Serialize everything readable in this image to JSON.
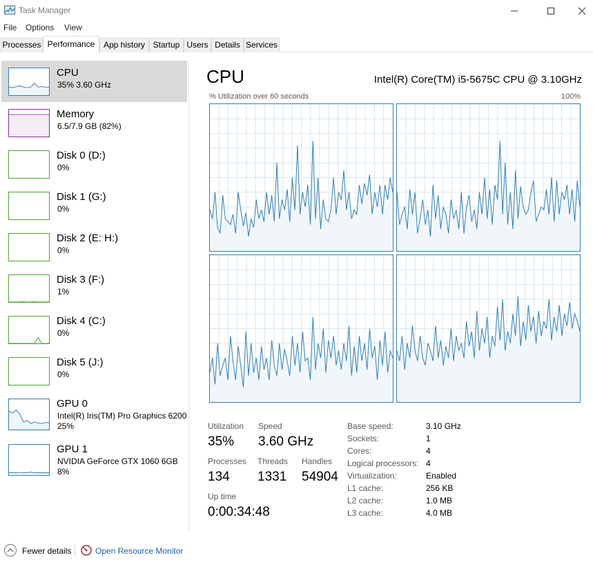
{
  "window": {
    "title": "Task Manager",
    "minimize_icon": "minimize-icon",
    "maximize_icon": "maximize-icon",
    "close_icon": "close-icon"
  },
  "menu": [
    "File",
    "Options",
    "View"
  ],
  "tabs": [
    "Processes",
    "Performance",
    "App history",
    "Startup",
    "Users",
    "Details",
    "Services"
  ],
  "active_tab": "Performance",
  "resources": [
    {
      "name": "CPU",
      "line1": "35%  3.60 GHz",
      "line2": "",
      "color": "#2f7db4",
      "selected": true
    },
    {
      "name": "Memory",
      "line1": "6.5/7.9 GB (82%)",
      "line2": "",
      "color": "#8b2ba5",
      "selected": false
    },
    {
      "name": "Disk 0 (D:)",
      "line1": "0%",
      "line2": "",
      "color": "#4da52d",
      "selected": false
    },
    {
      "name": "Disk 1 (G:)",
      "line1": "0%",
      "line2": "",
      "color": "#4da52d",
      "selected": false
    },
    {
      "name": "Disk 2 (E: H:)",
      "line1": "0%",
      "line2": "",
      "color": "#4da52d",
      "selected": false
    },
    {
      "name": "Disk 3 (F:)",
      "line1": "1%",
      "line2": "",
      "color": "#4da52d",
      "selected": false
    },
    {
      "name": "Disk 4 (C:)",
      "line1": "0%",
      "line2": "",
      "color": "#4da52d",
      "selected": false
    },
    {
      "name": "Disk 5 (J:)",
      "line1": "0%",
      "line2": "",
      "color": "#4da52d",
      "selected": false
    },
    {
      "name": "GPU 0",
      "line1": "Intel(R) Iris(TM) Pro Graphics 6200",
      "line2": "25%",
      "color": "#2f7db4",
      "selected": false
    },
    {
      "name": "GPU 1",
      "line1": "NVIDIA GeForce GTX 1060 6GB",
      "line2": "8%",
      "color": "#2f7db4",
      "selected": false
    }
  ],
  "cpu": {
    "title": "CPU",
    "model": "Intel(R) Core(TM) i5-5675C CPU @ 3.10GHz",
    "graph_label": "% Utilization over 60 seconds",
    "graph_max": "100%",
    "stats": {
      "utilization_label": "Utilization",
      "utilization": "35%",
      "speed_label": "Speed",
      "speed": "3.60 GHz",
      "processes_label": "Processes",
      "processes": "134",
      "threads_label": "Threads",
      "threads": "1331",
      "handles_label": "Handles",
      "handles": "54904",
      "uptime_label": "Up time",
      "uptime": "0:00:34:48"
    },
    "details": [
      {
        "key": "Base speed:",
        "value": "3.10 GHz"
      },
      {
        "key": "Sockets:",
        "value": "1"
      },
      {
        "key": "Cores:",
        "value": "4"
      },
      {
        "key": "Logical processors:",
        "value": "4"
      },
      {
        "key": "Virtualization:",
        "value": "Enabled"
      },
      {
        "key": "L1 cache:",
        "value": "256 KB"
      },
      {
        "key": "L2 cache:",
        "value": "1.0 MB"
      },
      {
        "key": "L3 cache:",
        "value": "4.0 MB"
      }
    ],
    "core_series": [
      [
        28,
        22,
        40,
        16,
        12,
        38,
        22,
        20,
        18,
        25,
        12,
        40,
        28,
        17,
        26,
        10,
        22,
        16,
        35,
        22,
        28,
        20,
        40,
        25,
        38,
        20,
        60,
        22,
        35,
        28,
        42,
        20,
        50,
        28,
        72,
        25,
        40,
        30,
        45,
        18,
        75,
        22,
        50,
        15,
        35,
        22,
        20,
        28,
        50,
        25,
        40,
        35,
        55,
        28,
        40,
        22,
        28,
        25,
        45,
        32,
        46,
        38,
        52,
        25,
        40,
        30,
        45,
        25,
        45,
        35,
        50,
        40
      ],
      [
        40,
        18,
        25,
        30,
        15,
        42,
        25,
        40,
        12,
        22,
        35,
        18,
        28,
        10,
        45,
        22,
        38,
        15,
        30,
        25,
        12,
        35,
        22,
        28,
        15,
        40,
        12,
        30,
        38,
        20,
        28,
        15,
        40,
        25,
        50,
        22,
        42,
        18,
        45,
        35,
        75,
        25,
        60,
        18,
        40,
        15,
        55,
        22,
        44,
        30,
        25,
        28,
        40,
        48,
        20,
        25,
        30,
        28,
        42,
        25,
        50,
        20,
        48,
        25,
        40,
        35,
        45,
        25,
        42,
        20,
        48,
        30
      ],
      [
        20,
        30,
        12,
        40,
        18,
        25,
        30,
        15,
        45,
        28,
        15,
        38,
        25,
        10,
        48,
        18,
        40,
        20,
        30,
        15,
        38,
        22,
        30,
        15,
        42,
        25,
        18,
        40,
        22,
        36,
        28,
        18,
        45,
        25,
        40,
        20,
        48,
        28,
        30,
        15,
        58,
        22,
        40,
        30,
        50,
        20,
        42,
        30,
        45,
        25,
        35,
        22,
        40,
        28,
        52,
        18,
        38,
        20,
        45,
        28,
        40,
        22,
        50,
        30,
        38,
        15,
        42,
        25,
        48,
        20,
        35,
        30
      ],
      [
        35,
        28,
        45,
        22,
        40,
        30,
        52,
        35,
        28,
        45,
        30,
        25,
        40,
        35,
        28,
        52,
        30,
        42,
        25,
        38,
        30,
        50,
        28,
        45,
        35,
        40,
        30,
        55,
        38,
        48,
        30,
        62,
        35,
        50,
        40,
        58,
        30,
        45,
        38,
        65,
        42,
        70,
        35,
        48,
        40,
        60,
        45,
        72,
        38,
        55,
        42,
        66,
        48,
        58,
        40,
        62,
        45,
        55,
        50,
        70,
        42,
        58,
        48,
        66,
        45,
        60,
        52,
        68,
        50,
        60,
        55,
        48
      ]
    ],
    "thumb_series": {
      "cpu": [
        30,
        28,
        32,
        35,
        30,
        28,
        30,
        45,
        30,
        32,
        30,
        30
      ],
      "memory": [
        82,
        82,
        82,
        82,
        82,
        82,
        82,
        82,
        82,
        82,
        82,
        82
      ],
      "disk3": [
        0,
        0,
        0,
        0,
        1,
        0,
        0,
        1,
        0,
        0,
        0,
        0
      ],
      "disk4": [
        0,
        0,
        0,
        0,
        0,
        0,
        0,
        0,
        22,
        0,
        0,
        0
      ],
      "gpu0": [
        60,
        55,
        65,
        50,
        25,
        30,
        20,
        25,
        22,
        20,
        24,
        22
      ],
      "gpu1": [
        8,
        8,
        8,
        9,
        8,
        8,
        10,
        8,
        8,
        8,
        8,
        8
      ]
    }
  },
  "footer": {
    "fewer_details": "Fewer details",
    "open_monitor": "Open Resource Monitor",
    "fewer_icon": "chevron-up-icon",
    "monitor_icon": "resource-monitor-icon"
  }
}
